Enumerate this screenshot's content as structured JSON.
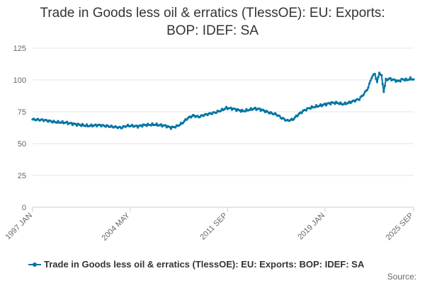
{
  "chart_data": {
    "type": "line",
    "title_lines": [
      "Trade in Goods less oil & erratics (TlessOE): EU: Exports:",
      "BOP: IDEF: SA"
    ],
    "x_start": "1997 JAN",
    "x_end": "2025 SEP",
    "x_tick_labels": [
      "1997 JAN",
      "2004 MAY",
      "2011 SEP",
      "2019 JAN",
      "2025 SEP"
    ],
    "x_tick_indices": [
      0,
      88,
      176,
      264,
      344
    ],
    "ylim": [
      0,
      125
    ],
    "y_ticks": [
      0,
      25,
      50,
      75,
      100,
      125
    ],
    "grid": true,
    "legend_position": "bottom",
    "anchor_points": [
      [
        0,
        69
      ],
      [
        10,
        68.5
      ],
      [
        20,
        67
      ],
      [
        30,
        66.5
      ],
      [
        40,
        65
      ],
      [
        50,
        64
      ],
      [
        60,
        64.5
      ],
      [
        70,
        63.5
      ],
      [
        80,
        62.5
      ],
      [
        85,
        64
      ],
      [
        90,
        64
      ],
      [
        95,
        63.5
      ],
      [
        100,
        64.5
      ],
      [
        110,
        65
      ],
      [
        120,
        64
      ],
      [
        125,
        62.5
      ],
      [
        130,
        63.5
      ],
      [
        135,
        66
      ],
      [
        140,
        70
      ],
      [
        145,
        72
      ],
      [
        150,
        71
      ],
      [
        155,
        72.5
      ],
      [
        160,
        73.5
      ],
      [
        165,
        74.5
      ],
      [
        170,
        76
      ],
      [
        175,
        78
      ],
      [
        180,
        77.5
      ],
      [
        185,
        76.5
      ],
      [
        190,
        75.5
      ],
      [
        195,
        76.5
      ],
      [
        200,
        77.5
      ],
      [
        205,
        77
      ],
      [
        210,
        75.5
      ],
      [
        215,
        74
      ],
      [
        220,
        73
      ],
      [
        225,
        70
      ],
      [
        230,
        68
      ],
      [
        235,
        69
      ],
      [
        240,
        73
      ],
      [
        245,
        76
      ],
      [
        250,
        78
      ],
      [
        255,
        79
      ],
      [
        260,
        80
      ],
      [
        265,
        81
      ],
      [
        270,
        82
      ],
      [
        275,
        82
      ],
      [
        280,
        81
      ],
      [
        285,
        82
      ],
      [
        290,
        83.5
      ],
      [
        295,
        85
      ],
      [
        300,
        90
      ],
      [
        303,
        94
      ],
      [
        306,
        102
      ],
      [
        309,
        105
      ],
      [
        311,
        98
      ],
      [
        313,
        106
      ],
      [
        315,
        103
      ],
      [
        317,
        91
      ],
      [
        319,
        100
      ],
      [
        322,
        101
      ],
      [
        326,
        100
      ],
      [
        330,
        99
      ],
      [
        334,
        100.5
      ],
      [
        338,
        100
      ],
      [
        341,
        101
      ],
      [
        344,
        100.5
      ]
    ],
    "series": [
      {
        "name": "Trade in Goods less oil & erratics (TlessOE): EU: Exports: BOP: IDEF: SA",
        "color": "#0075a3"
      }
    ]
  },
  "legend": {
    "label": "Trade in Goods less oil & erratics (TlessOE): EU: Exports: BOP: IDEF: SA"
  },
  "source": "Source:"
}
